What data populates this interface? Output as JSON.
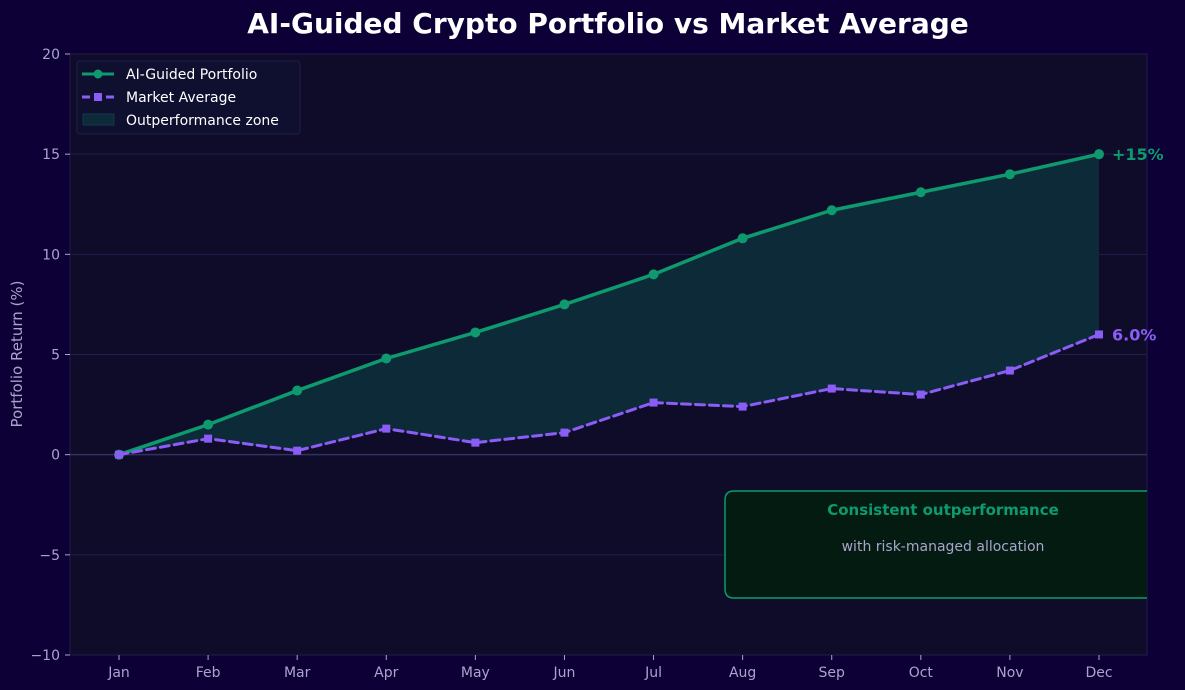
{
  "chart_data": {
    "type": "line",
    "title": "AI-Guided Crypto Portfolio vs Market Average",
    "xlabel": "",
    "ylabel": "Portfolio Return (%)",
    "categories": [
      "Jan",
      "Feb",
      "Mar",
      "Apr",
      "May",
      "Jun",
      "Jul",
      "Aug",
      "Sep",
      "Oct",
      "Nov",
      "Dec"
    ],
    "ylim": [
      -10,
      20
    ],
    "yticks": [
      -10,
      -5,
      0,
      5,
      10,
      15,
      20
    ],
    "ytick_labels": [
      "−10",
      "−5",
      "0",
      "5",
      "10",
      "15",
      "20"
    ],
    "grid": true,
    "legend_position": "top-left",
    "series": [
      {
        "name": "AI-Guided Portfolio",
        "values": [
          0,
          1.5,
          3.2,
          4.8,
          6.1,
          7.5,
          9.0,
          10.8,
          12.2,
          13.1,
          14.0,
          15.0
        ],
        "color": "#0e9a6e",
        "style": "solid",
        "marker": "circle",
        "end_label": "+15%"
      },
      {
        "name": "Market Average",
        "values": [
          0,
          0.8,
          0.2,
          1.3,
          0.6,
          1.1,
          2.6,
          2.4,
          3.3,
          3.0,
          4.2,
          6.0
        ],
        "color": "#8b5cf6",
        "style": "dashed",
        "marker": "square",
        "end_label": "6.0%"
      }
    ],
    "fill_between": {
      "name": "Outperformance zone",
      "color": "#0c2a38"
    },
    "annotation": {
      "title": "Consistent outperformance",
      "subtitle": "with risk-managed allocation",
      "color": "#0e9a6e"
    }
  },
  "colors": {
    "page_background": "#0c0036",
    "plot_background": "#0f0c29",
    "grid": "#221d4d",
    "zero_line": "#34305e"
  }
}
